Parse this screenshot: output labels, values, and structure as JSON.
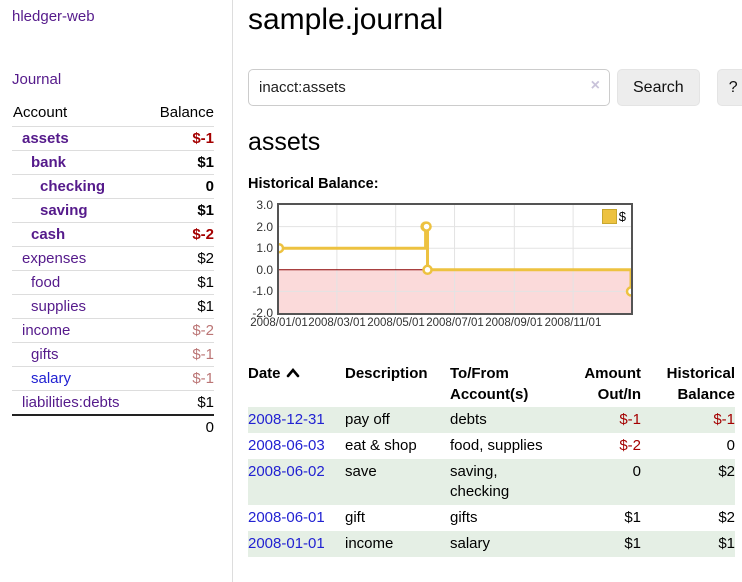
{
  "colors": {
    "purple": "#551a8b",
    "blue": "#2222d2",
    "neg_strong": "#a40000",
    "neg_faded": "#bb7575",
    "row_green": "#e5efe5",
    "chart_yellow": "#edc240",
    "chart_pink": "#fbdada",
    "zero_red": "#8b0000",
    "border_gray": "#dddddd",
    "chart_border": "#545454"
  },
  "sidebar": {
    "app_title": "hledger-web",
    "nav": {
      "journal": "Journal"
    },
    "accounts": {
      "header": {
        "account": "Account",
        "balance": "Balance"
      },
      "rows": [
        {
          "name": "assets",
          "depth": 1,
          "bold": true,
          "balance": "$-1",
          "balance_class": "neg-strong"
        },
        {
          "name": "bank",
          "depth": 2,
          "bold": true,
          "balance": "$1",
          "balance_class": ""
        },
        {
          "name": "checking",
          "depth": 3,
          "bold": true,
          "balance": "0",
          "balance_class": ""
        },
        {
          "name": "saving",
          "depth": 3,
          "bold": true,
          "balance": "$1",
          "balance_class": ""
        },
        {
          "name": "cash",
          "depth": 2,
          "bold": true,
          "balance": "$-2",
          "balance_class": "neg-strong"
        },
        {
          "name": "expenses",
          "depth": 1,
          "bold": false,
          "balance": "$2",
          "balance_class": ""
        },
        {
          "name": "food",
          "depth": 2,
          "bold": false,
          "balance": "$1",
          "balance_class": ""
        },
        {
          "name": "supplies",
          "depth": 2,
          "bold": false,
          "balance": "$1",
          "balance_class": ""
        },
        {
          "name": "income",
          "depth": 1,
          "bold": false,
          "balance": "$-2",
          "balance_class": "neg-faded"
        },
        {
          "name": "gifts",
          "depth": 2,
          "bold": false,
          "balance": "$-1",
          "balance_class": "neg-faded"
        },
        {
          "name": "salary",
          "depth": 2,
          "bold": false,
          "balance": "$-1",
          "balance_class": "neg-faded",
          "link_color": "blue"
        },
        {
          "name": "liabilities:debts",
          "depth": 1,
          "bold": false,
          "balance": "$1",
          "balance_class": ""
        }
      ],
      "total": "0"
    }
  },
  "main": {
    "title": "sample.journal",
    "search": {
      "value": "inacct:assets",
      "clear_icon": "×",
      "search_button": "Search",
      "help_button": "?"
    },
    "account_heading": "assets",
    "chart_heading": "Historical Balance:"
  },
  "chart_data": {
    "type": "line",
    "title": "Historical Balance:",
    "step": true,
    "grid": true,
    "legend_position": "top-right",
    "x_start": "2008-01-01",
    "x_end": "2008-12-31",
    "x_ticks": [
      "2008/01/01",
      "2008/03/01",
      "2008/05/01",
      "2008/07/01",
      "2008/09/01",
      "2008/11/01"
    ],
    "y_ticks": [
      "3.0",
      "2.0",
      "1.0",
      "0.0",
      "-1.0",
      "-2.0"
    ],
    "ylim": [
      -2,
      3
    ],
    "series": [
      {
        "name": "$",
        "color": "#edc240",
        "points": [
          [
            "2008-01-01",
            1
          ],
          [
            "2008-06-01",
            2
          ],
          [
            "2008-06-02",
            2
          ],
          [
            "2008-06-03",
            0
          ],
          [
            "2008-12-31",
            -1
          ]
        ]
      }
    ],
    "negative_region_color": "#fbdada",
    "zero_line_color": "#8b0000"
  },
  "transactions": {
    "headers": [
      {
        "lines": [
          "Date"
        ],
        "align": "left",
        "sort": "asc"
      },
      {
        "lines": [
          "Description"
        ],
        "align": "left"
      },
      {
        "lines": [
          "To/From",
          "Account(s)"
        ],
        "align": "left"
      },
      {
        "lines": [
          "Amount",
          "Out/In"
        ],
        "align": "right"
      },
      {
        "lines": [
          "Historical",
          "Balance"
        ],
        "align": "right"
      }
    ],
    "rows": [
      {
        "date": "2008-12-31",
        "description": "pay off",
        "accounts": "debts",
        "amount": "$-1",
        "amount_neg": true,
        "balance": "$-1",
        "balance_neg": true,
        "shaded": true
      },
      {
        "date": "2008-06-03",
        "description": "eat & shop",
        "accounts": "food, supplies",
        "amount": "$-2",
        "amount_neg": true,
        "balance": "0",
        "balance_neg": false,
        "shaded": false
      },
      {
        "date": "2008-06-02",
        "description": "save",
        "accounts": "saving, checking",
        "amount": "0",
        "amount_neg": false,
        "balance": "$2",
        "balance_neg": false,
        "shaded": true
      },
      {
        "date": "2008-06-01",
        "description": "gift",
        "accounts": "gifts",
        "amount": "$1",
        "amount_neg": false,
        "balance": "$2",
        "balance_neg": false,
        "shaded": false
      },
      {
        "date": "2008-01-01",
        "description": "income",
        "accounts": "salary",
        "amount": "$1",
        "amount_neg": false,
        "balance": "$1",
        "balance_neg": false,
        "shaded": true
      }
    ]
  }
}
